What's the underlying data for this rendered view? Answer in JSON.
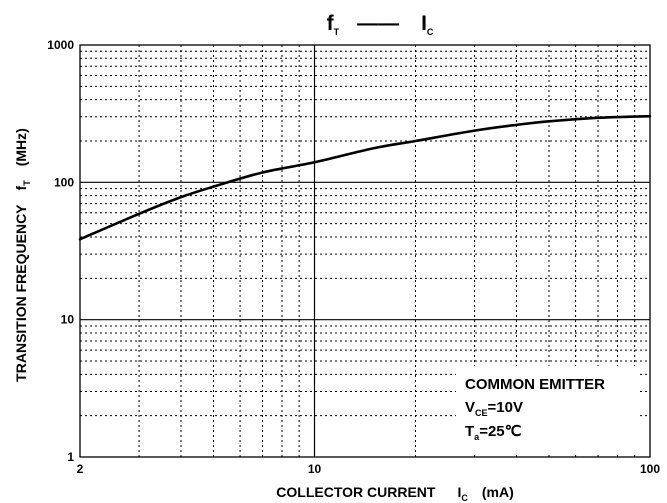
{
  "chart_data": {
    "type": "line",
    "title": {
      "main": "f",
      "main_sub": "T",
      "dash": "——",
      "second": "I",
      "second_sub": "C"
    },
    "xlabel": {
      "text": "COLLECTOR CURRENT",
      "symbol": "I",
      "symbol_sub": "C",
      "unit": "(mA)"
    },
    "ylabel": {
      "text": "TRANSITION FREQUENCY",
      "symbol": "f",
      "symbol_sub": "T",
      "unit": "(MHz)"
    },
    "x_scale": "log",
    "y_scale": "log",
    "xlim": [
      2,
      100
    ],
    "ylim": [
      1,
      1000
    ],
    "x_ticks": [
      {
        "value": 2,
        "label": "2"
      },
      {
        "value": 10,
        "label": "10"
      },
      {
        "value": 100,
        "label": "100"
      }
    ],
    "y_ticks": [
      {
        "value": 1,
        "label": "1"
      },
      {
        "value": 10,
        "label": "10"
      },
      {
        "value": 100,
        "label": "100"
      },
      {
        "value": 1000,
        "label": "1000"
      }
    ],
    "grid": true,
    "series": [
      {
        "x": [
          2,
          3,
          4,
          5,
          7,
          10,
          15,
          20,
          30,
          40,
          50,
          70,
          100
        ],
        "y": [
          38.5,
          59,
          78,
          93,
          118,
          140,
          177,
          200,
          238,
          262,
          278,
          295,
          303
        ]
      }
    ],
    "annotations": {
      "line1": "COMMON EMITTER",
      "line2_main": "V",
      "line2_sub": "CE",
      "line2_rest": "=10V",
      "line3_main": "T",
      "line3_sub": "a",
      "line3_rest": "=25℃"
    },
    "colors": {
      "line": "#000000",
      "grid": "#000000",
      "background": "#ffffff"
    }
  }
}
